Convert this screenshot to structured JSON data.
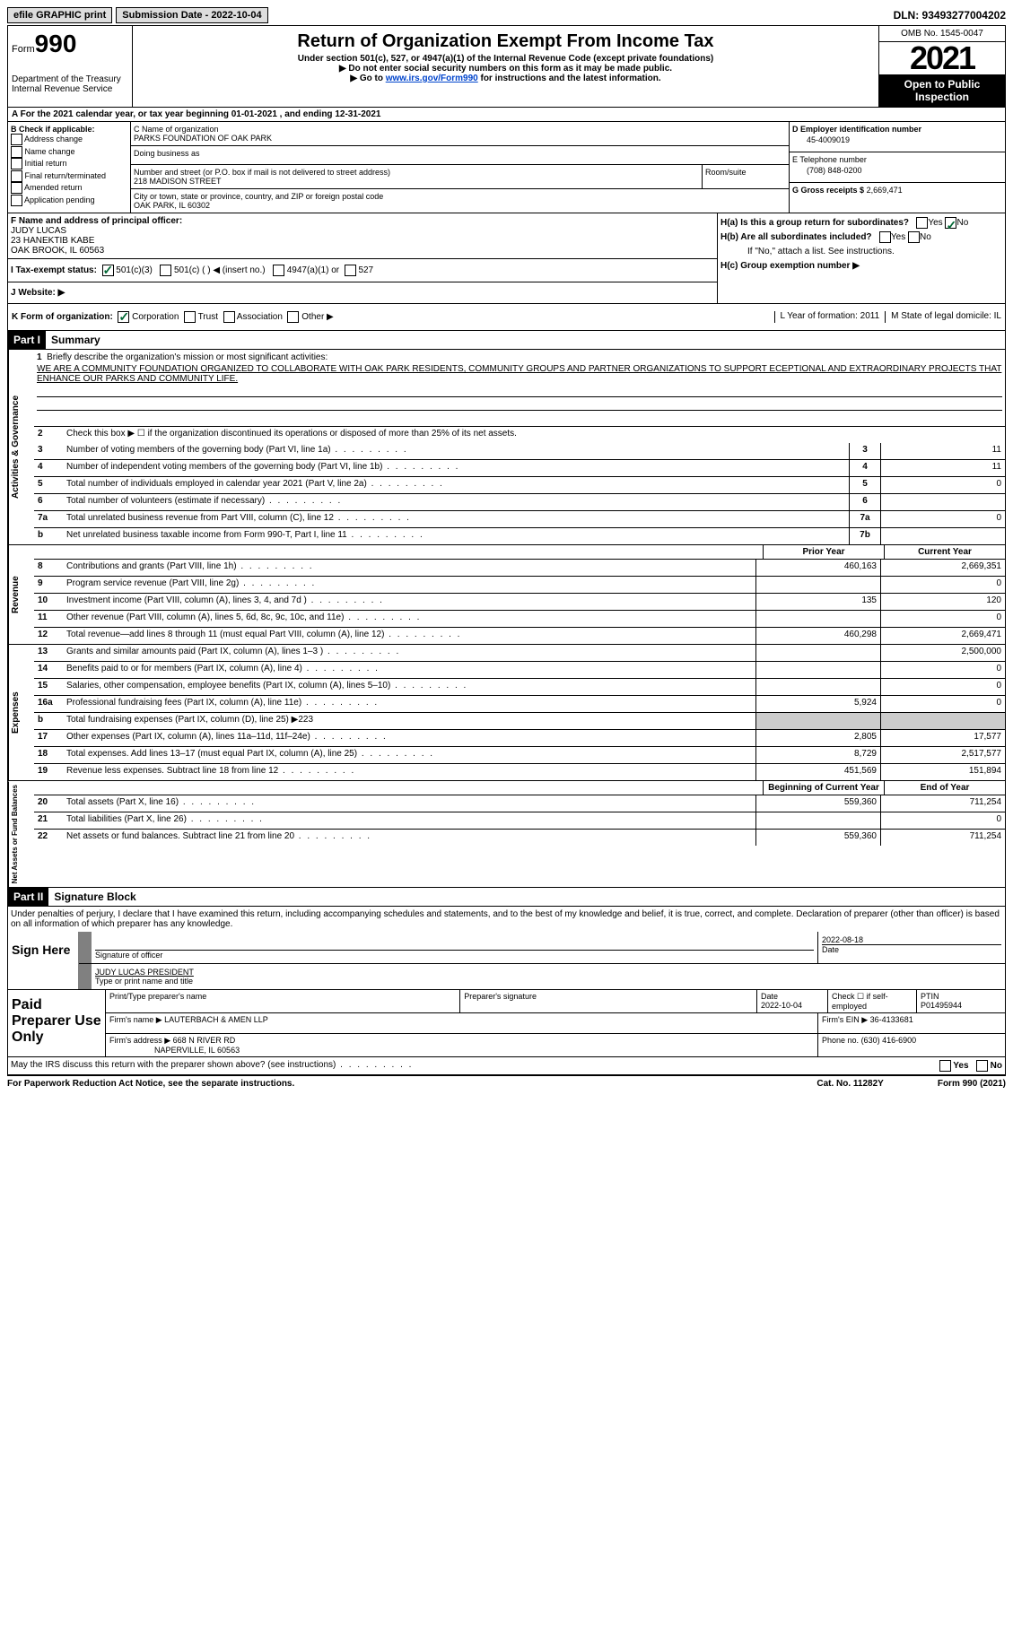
{
  "topbar": {
    "efile_label": "efile GRAPHIC print",
    "submission_label": "Submission Date - 2022-10-04",
    "dln": "DLN: 93493277004202"
  },
  "header": {
    "form_prefix": "Form",
    "form_number": "990",
    "dept": "Department of the Treasury",
    "irs": "Internal Revenue Service",
    "title": "Return of Organization Exempt From Income Tax",
    "subtitle": "Under section 501(c), 527, or 4947(a)(1) of the Internal Revenue Code (except private foundations)",
    "note1": "▶ Do not enter social security numbers on this form as it may be made public.",
    "note2_pre": "▶ Go to ",
    "note2_link": "www.irs.gov/Form990",
    "note2_post": " for instructions and the latest information.",
    "omb": "OMB No. 1545-0047",
    "year": "2021",
    "inspect": "Open to Public Inspection"
  },
  "row_A": "A For the 2021 calendar year, or tax year beginning 01-01-2021   , and ending 12-31-2021",
  "section_B": {
    "label": "B Check if applicable:",
    "opts": [
      "Address change",
      "Name change",
      "Initial return",
      "Final return/terminated",
      "Amended return",
      "Application pending"
    ]
  },
  "section_C": {
    "name_label": "C Name of organization",
    "name": "PARKS FOUNDATION OF OAK PARK",
    "dba_label": "Doing business as",
    "street_label": "Number and street (or P.O. box if mail is not delivered to street address)",
    "street": "218 MADISON STREET",
    "room_label": "Room/suite",
    "city_label": "City or town, state or province, country, and ZIP or foreign postal code",
    "city": "OAK PARK, IL  60302"
  },
  "section_D": {
    "label": "D Employer identification number",
    "value": "45-4009019"
  },
  "section_E": {
    "label": "E Telephone number",
    "value": "(708) 848-0200"
  },
  "section_G": {
    "label": "G Gross receipts $",
    "value": "2,669,471"
  },
  "section_F": {
    "label": "F Name and address of principal officer:",
    "name": "JUDY LUCAS",
    "addr1": "23 HANEKTIB KABE",
    "addr2": "OAK BROOK, IL  60563"
  },
  "section_H": {
    "ha": "H(a)  Is this a group return for subordinates?",
    "hb": "H(b)  Are all subordinates included?",
    "hb_note": "If \"No,\" attach a list. See instructions.",
    "hc": "H(c)  Group exemption number ▶",
    "yes": "Yes",
    "no": "No"
  },
  "section_I": {
    "label": "I  Tax-exempt status:",
    "o1": "501(c)(3)",
    "o2": "501(c) (  ) ◀ (insert no.)",
    "o3": "4947(a)(1) or",
    "o4": "527"
  },
  "section_J": {
    "label": "J  Website: ▶"
  },
  "section_K": {
    "label": "K Form of organization:",
    "o1": "Corporation",
    "o2": "Trust",
    "o3": "Association",
    "o4": "Other ▶"
  },
  "section_L": {
    "label": "L Year of formation: 2011"
  },
  "section_M": {
    "label": "M State of legal domicile: IL"
  },
  "part1": {
    "bar": "Part I",
    "title": "Summary",
    "line1_label": "Briefly describe the organization's mission or most significant activities:",
    "line1_text": "WE ARE A COMMUNITY FOUNDATION ORGANIZED TO COLLABORATE WITH OAK PARK RESIDENTS, COMMUNITY GROUPS AND PARTNER ORGANIZATIONS TO SUPPORT ECEPTIONAL AND EXTRAORDINARY PROJECTS THAT ENHANCE OUR PARKS AND COMMUNITY LIFE.",
    "line2": "Check this box ▶ ☐ if the organization discontinued its operations or disposed of more than 25% of its net assets.",
    "side_ag": "Activities & Governance",
    "side_rev": "Revenue",
    "side_exp": "Expenses",
    "side_na": "Net Assets or Fund Balances",
    "hdr_prior": "Prior Year",
    "hdr_curr": "Current Year",
    "hdr_beg": "Beginning of Current Year",
    "hdr_end": "End of Year",
    "rows_ag": [
      {
        "n": "3",
        "d": "Number of voting members of the governing body (Part VI, line 1a)",
        "box": "3",
        "v": "11"
      },
      {
        "n": "4",
        "d": "Number of independent voting members of the governing body (Part VI, line 1b)",
        "box": "4",
        "v": "11"
      },
      {
        "n": "5",
        "d": "Total number of individuals employed in calendar year 2021 (Part V, line 2a)",
        "box": "5",
        "v": "0"
      },
      {
        "n": "6",
        "d": "Total number of volunteers (estimate if necessary)",
        "box": "6",
        "v": ""
      },
      {
        "n": "7a",
        "d": "Total unrelated business revenue from Part VIII, column (C), line 12",
        "box": "7a",
        "v": "0"
      },
      {
        "n": "b",
        "d": "Net unrelated business taxable income from Form 990-T, Part I, line 11",
        "box": "7b",
        "v": ""
      }
    ],
    "rows_rev": [
      {
        "n": "8",
        "d": "Contributions and grants (Part VIII, line 1h)",
        "p": "460,163",
        "c": "2,669,351"
      },
      {
        "n": "9",
        "d": "Program service revenue (Part VIII, line 2g)",
        "p": "",
        "c": "0"
      },
      {
        "n": "10",
        "d": "Investment income (Part VIII, column (A), lines 3, 4, and 7d )",
        "p": "135",
        "c": "120"
      },
      {
        "n": "11",
        "d": "Other revenue (Part VIII, column (A), lines 5, 6d, 8c, 9c, 10c, and 11e)",
        "p": "",
        "c": "0"
      },
      {
        "n": "12",
        "d": "Total revenue—add lines 8 through 11 (must equal Part VIII, column (A), line 12)",
        "p": "460,298",
        "c": "2,669,471"
      }
    ],
    "rows_exp": [
      {
        "n": "13",
        "d": "Grants and similar amounts paid (Part IX, column (A), lines 1–3 )",
        "p": "",
        "c": "2,500,000"
      },
      {
        "n": "14",
        "d": "Benefits paid to or for members (Part IX, column (A), line 4)",
        "p": "",
        "c": "0"
      },
      {
        "n": "15",
        "d": "Salaries, other compensation, employee benefits (Part IX, column (A), lines 5–10)",
        "p": "",
        "c": "0"
      },
      {
        "n": "16a",
        "d": "Professional fundraising fees (Part IX, column (A), line 11e)",
        "p": "5,924",
        "c": "0"
      },
      {
        "n": "b",
        "d": "Total fundraising expenses (Part IX, column (D), line 25) ▶223",
        "p": null,
        "c": null,
        "shaded": true
      },
      {
        "n": "17",
        "d": "Other expenses (Part IX, column (A), lines 11a–11d, 11f–24e)",
        "p": "2,805",
        "c": "17,577"
      },
      {
        "n": "18",
        "d": "Total expenses. Add lines 13–17 (must equal Part IX, column (A), line 25)",
        "p": "8,729",
        "c": "2,517,577"
      },
      {
        "n": "19",
        "d": "Revenue less expenses. Subtract line 18 from line 12",
        "p": "451,569",
        "c": "151,894"
      }
    ],
    "rows_na": [
      {
        "n": "20",
        "d": "Total assets (Part X, line 16)",
        "p": "559,360",
        "c": "711,254"
      },
      {
        "n": "21",
        "d": "Total liabilities (Part X, line 26)",
        "p": "",
        "c": "0"
      },
      {
        "n": "22",
        "d": "Net assets or fund balances. Subtract line 21 from line 20",
        "p": "559,360",
        "c": "711,254"
      }
    ]
  },
  "part2": {
    "bar": "Part II",
    "title": "Signature Block",
    "decl": "Under penalties of perjury, I declare that I have examined this return, including accompanying schedules and statements, and to the best of my knowledge and belief, it is true, correct, and complete. Declaration of preparer (other than officer) is based on all information of which preparer has any knowledge.",
    "sign_here": "Sign Here",
    "sig_officer": "Signature of officer",
    "sig_date": "2022-08-18",
    "date_label": "Date",
    "name_title": "JUDY LUCAS  PRESIDENT",
    "type_label": "Type or print name and title",
    "paid": "Paid Preparer Use Only",
    "p_name_label": "Print/Type preparer's name",
    "p_sig_label": "Preparer's signature",
    "p_date_label": "Date",
    "p_date": "2022-10-04",
    "p_check": "Check ☐ if self-employed",
    "ptin_label": "PTIN",
    "ptin": "P01495944",
    "firm_name_label": "Firm's name    ▶",
    "firm_name": "LAUTERBACH & AMEN LLP",
    "firm_ein_label": "Firm's EIN ▶",
    "firm_ein": "36-4133681",
    "firm_addr_label": "Firm's address ▶",
    "firm_addr": "668 N RIVER RD",
    "firm_city": "NAPERVILLE, IL  60563",
    "phone_label": "Phone no.",
    "phone": "(630) 416-6900",
    "may_irs": "May the IRS discuss this return with the preparer shown above? (see instructions)",
    "yes": "Yes",
    "no": "No"
  },
  "footer": {
    "left": "For Paperwork Reduction Act Notice, see the separate instructions.",
    "mid": "Cat. No. 11282Y",
    "right": "Form 990 (2021)"
  }
}
